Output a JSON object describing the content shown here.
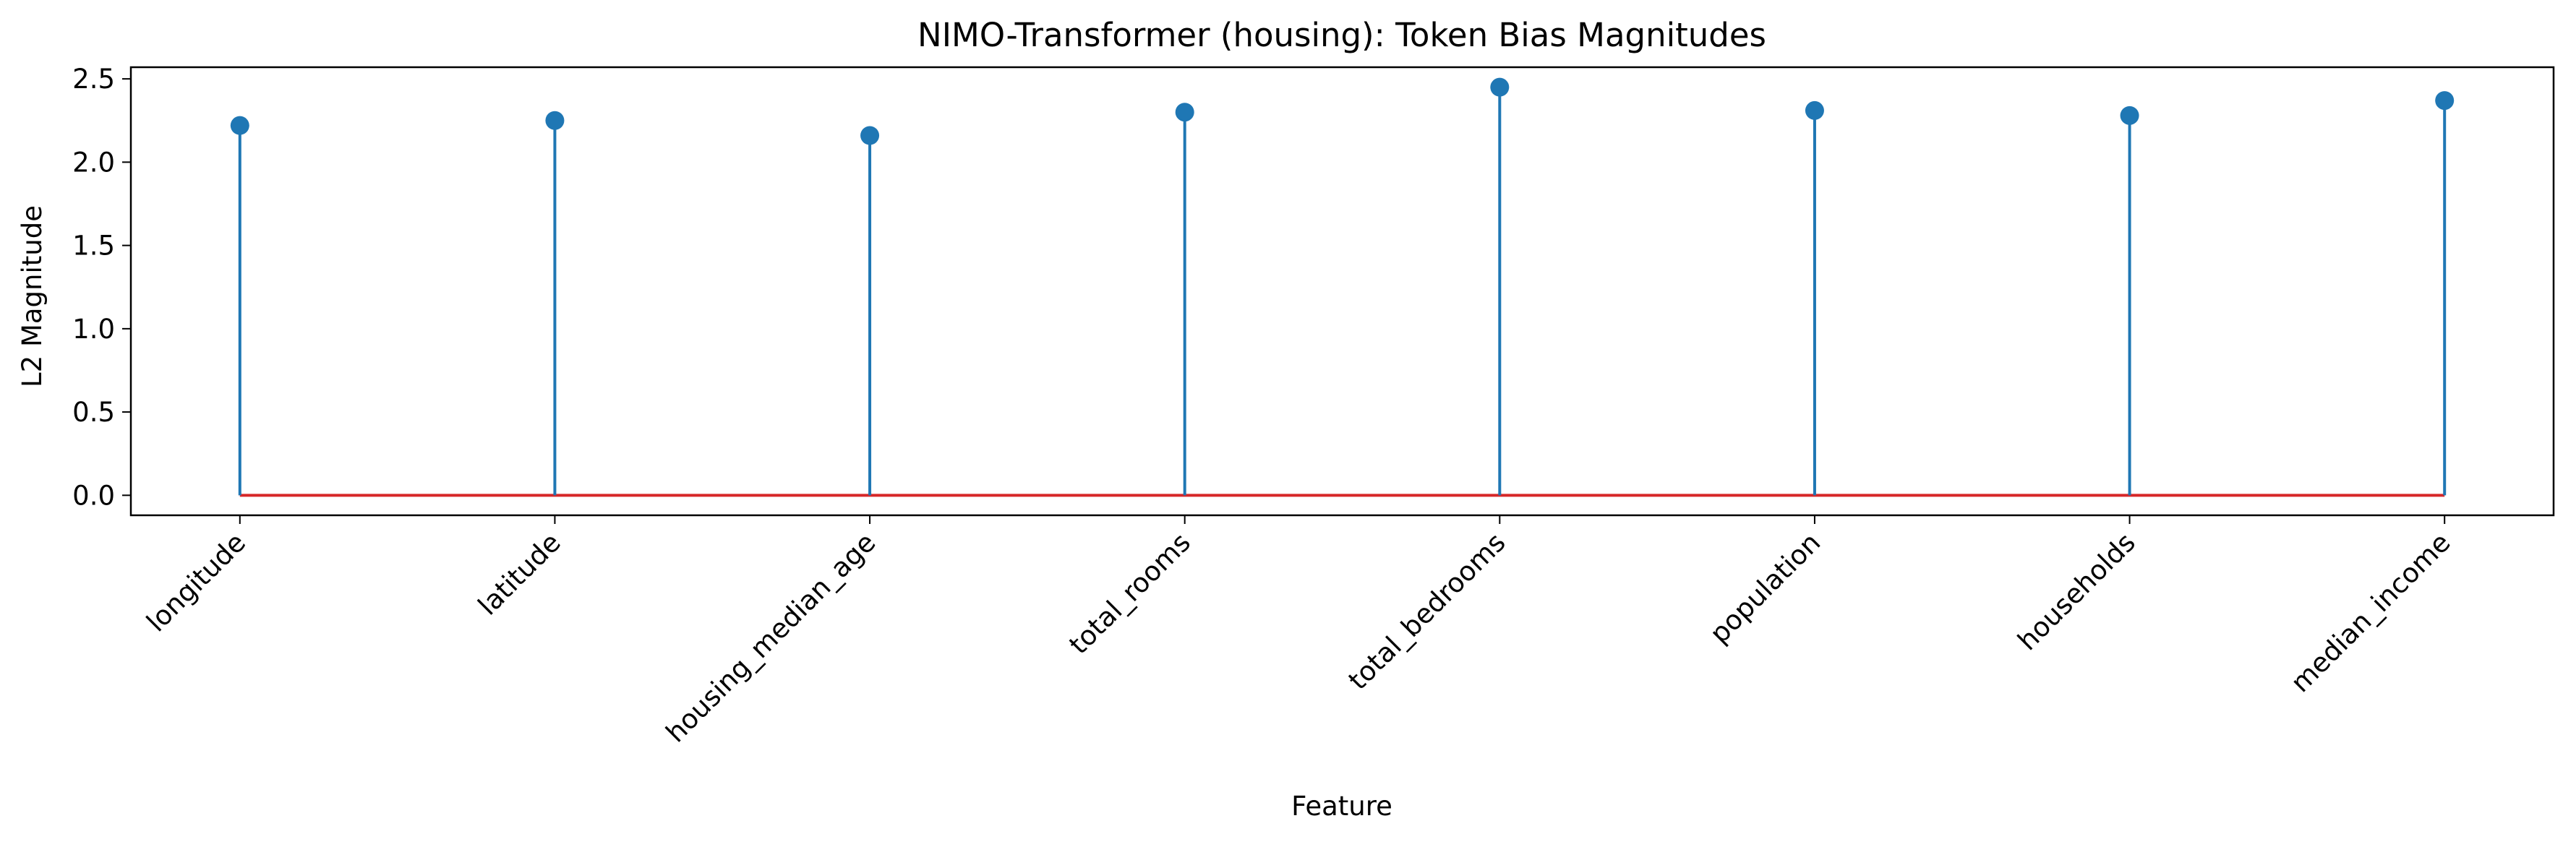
{
  "chart_data": {
    "type": "stem",
    "title": "NIMO-Transformer (housing): Token Bias Magnitudes",
    "xlabel": "Feature",
    "ylabel": "L2 Magnitude",
    "categories": [
      "longitude",
      "latitude",
      "housing_median_age",
      "total_rooms",
      "total_bedrooms",
      "population",
      "households",
      "median_income"
    ],
    "values": [
      2.22,
      2.25,
      2.16,
      2.3,
      2.45,
      2.31,
      2.28,
      2.37
    ],
    "ylim": [
      -0.12,
      2.57
    ],
    "yticks": [
      0.0,
      0.5,
      1.0,
      1.5,
      2.0,
      2.5
    ],
    "ytick_labels": [
      "0.0",
      "0.5",
      "1.0",
      "1.5",
      "2.0",
      "2.5"
    ],
    "baseline": 0.0,
    "grid": false,
    "legend": "none",
    "colors": {
      "stem": "#1f77b4",
      "marker": "#1f77b4",
      "baseline": "#d62728",
      "axes": "#000000"
    }
  }
}
